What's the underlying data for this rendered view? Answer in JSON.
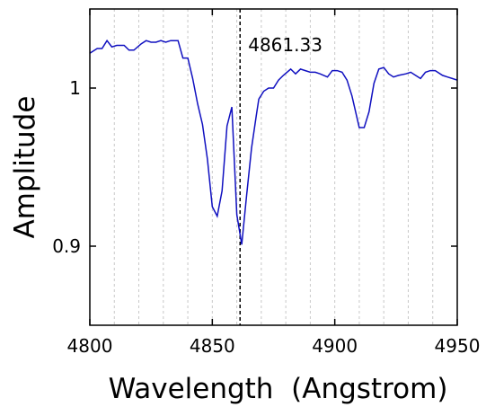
{
  "chart_data": {
    "type": "line",
    "title": "",
    "xlabel": "Wavelength  (Angstrom)",
    "ylabel": "Amplitude",
    "xlim": [
      4800,
      4950
    ],
    "ylim": [
      0.85,
      1.05
    ],
    "x_ticks": [
      4800,
      4850,
      4900,
      4950
    ],
    "x_tick_labels": [
      "4800",
      "4850",
      "4900",
      "4950"
    ],
    "y_ticks": [
      0.9,
      1.0
    ],
    "y_tick_labels": [
      "0.9",
      "1"
    ],
    "x_minor_grid_step": 10,
    "grid": "vertical dashed minor lines",
    "line_color": "#1010c0",
    "marker_line": {
      "x": 4861.33,
      "label": "4861.33",
      "style": "dashed",
      "color": "#000000"
    },
    "series": [
      {
        "x": [
          4800,
          4803,
          4805,
          4807,
          4809,
          4811,
          4814,
          4816,
          4818,
          4821,
          4823,
          4825,
          4827,
          4829,
          4831,
          4833,
          4836,
          4838,
          4840,
          4842,
          4844,
          4846,
          4848,
          4850,
          4852,
          4854,
          4856,
          4858,
          4860,
          4862,
          4864,
          4866,
          4868,
          4869,
          4871,
          4873,
          4875,
          4877,
          4879,
          4882,
          4884,
          4886,
          4888,
          4890,
          4892,
          4894,
          4897,
          4899,
          4901,
          4903,
          4905,
          4907,
          4910,
          4912,
          4914,
          4916,
          4918,
          4920,
          4922,
          4924,
          4926,
          4929,
          4931,
          4933,
          4935,
          4937,
          4939,
          4941,
          4944,
          4946,
          4948,
          4950
        ],
        "y": [
          1.022,
          1.025,
          1.025,
          1.03,
          1.026,
          1.027,
          1.027,
          1.024,
          1.024,
          1.028,
          1.03,
          1.029,
          1.029,
          1.03,
          1.029,
          1.03,
          1.03,
          1.019,
          1.019,
          1.006,
          0.99,
          0.977,
          0.955,
          0.925,
          0.919,
          0.935,
          0.976,
          0.988,
          0.92,
          0.901,
          0.932,
          0.962,
          0.983,
          0.993,
          0.998,
          1.0,
          1.0,
          1.005,
          1.008,
          1.012,
          1.009,
          1.012,
          1.011,
          1.01,
          1.01,
          1.009,
          1.007,
          1.011,
          1.011,
          1.01,
          1.005,
          0.995,
          0.975,
          0.975,
          0.985,
          1.003,
          1.012,
          1.013,
          1.009,
          1.007,
          1.008,
          1.009,
          1.01,
          1.008,
          1.006,
          1.01,
          1.011,
          1.011,
          1.008,
          1.007,
          1.006,
          1.005
        ]
      }
    ]
  }
}
